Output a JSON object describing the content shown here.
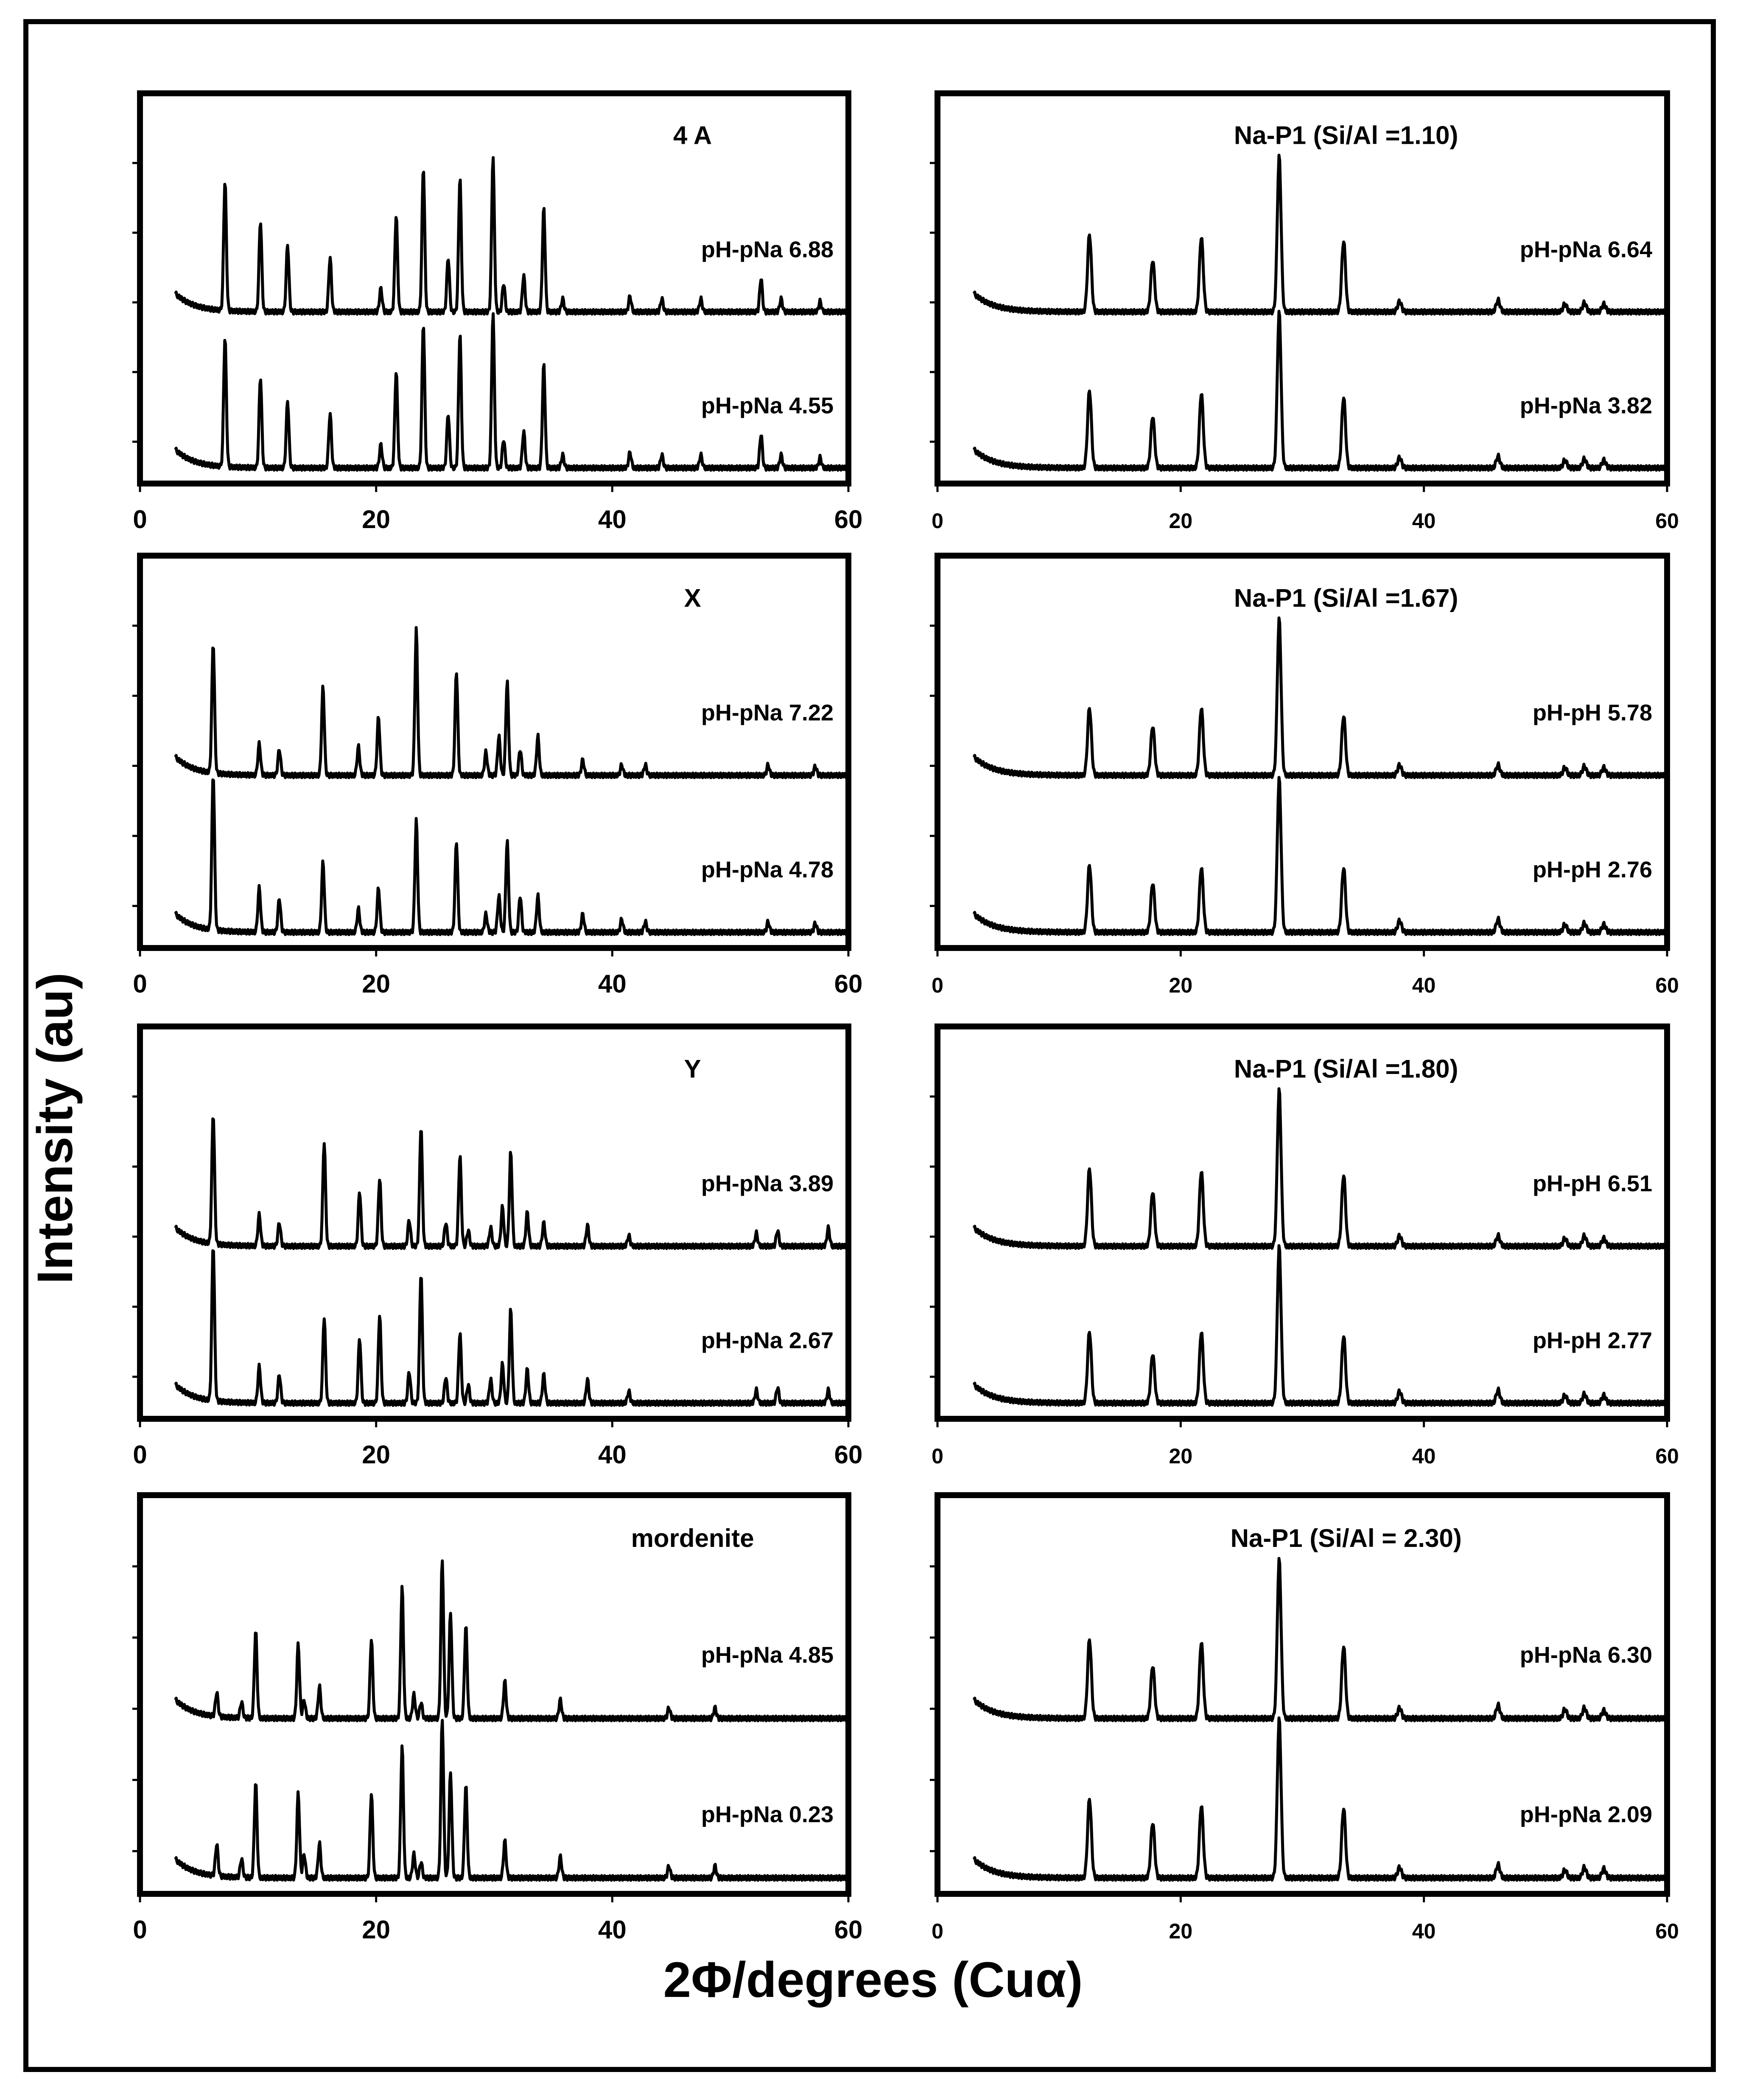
{
  "figure": {
    "ylabel": "Intensity (au)",
    "xlabel": "2Φ/degrees (Cuα)"
  },
  "chart_data": [
    {
      "type": "line",
      "panel": "left-1",
      "title": "4 A",
      "xlabel": "",
      "ylabel": "",
      "xlim": [
        0,
        60
      ],
      "xticks": [
        0,
        20,
        40,
        60
      ],
      "series": [
        {
          "name": "pH-pNa 6.88",
          "peaks": [
            [
              7.2,
              100
            ],
            [
              10.2,
              70
            ],
            [
              12.5,
              52
            ],
            [
              16.1,
              42
            ],
            [
              20.4,
              18
            ],
            [
              21.7,
              75
            ],
            [
              24.0,
              112
            ],
            [
              26.1,
              42
            ],
            [
              27.1,
              104
            ],
            [
              29.9,
              120
            ],
            [
              30.8,
              22
            ],
            [
              32.5,
              28
            ],
            [
              34.2,
              80
            ],
            [
              35.8,
              10
            ],
            [
              41.5,
              12
            ],
            [
              44.2,
              10
            ],
            [
              47.5,
              10
            ],
            [
              52.6,
              26
            ],
            [
              54.3,
              10
            ],
            [
              57.6,
              8
            ]
          ]
        },
        {
          "name": "pH-pNa 4.55",
          "peaks": [
            [
              7.2,
              100
            ],
            [
              10.2,
              70
            ],
            [
              12.5,
              52
            ],
            [
              16.1,
              42
            ],
            [
              20.4,
              18
            ],
            [
              21.7,
              75
            ],
            [
              24.0,
              112
            ],
            [
              26.1,
              42
            ],
            [
              27.1,
              104
            ],
            [
              29.9,
              120
            ],
            [
              30.8,
              22
            ],
            [
              32.5,
              28
            ],
            [
              34.2,
              80
            ],
            [
              35.8,
              10
            ],
            [
              41.5,
              12
            ],
            [
              44.2,
              10
            ],
            [
              47.5,
              10
            ],
            [
              52.6,
              26
            ],
            [
              54.3,
              10
            ],
            [
              57.6,
              8
            ]
          ]
        }
      ]
    },
    {
      "type": "line",
      "panel": "right-1",
      "title": "Na-P1  (Si/Al  =1.10)",
      "xlabel": "",
      "ylabel": "",
      "xlim": [
        0,
        60
      ],
      "xticks": [
        0,
        20,
        40,
        60
      ],
      "series": [
        {
          "name": "pH-pNa 6.64",
          "peaks": [
            [
              12.5,
              60
            ],
            [
              17.7,
              40
            ],
            [
              21.7,
              58
            ],
            [
              28.1,
              120
            ],
            [
              33.4,
              55
            ],
            [
              38.0,
              8
            ],
            [
              46.1,
              9
            ],
            [
              51.6,
              6
            ],
            [
              53.2,
              7
            ],
            [
              54.8,
              6
            ]
          ]
        },
        {
          "name": "pH-pNa 3.82",
          "peaks": [
            [
              12.5,
              60
            ],
            [
              17.7,
              40
            ],
            [
              21.7,
              58
            ],
            [
              28.1,
              120
            ],
            [
              33.4,
              55
            ],
            [
              38.0,
              8
            ],
            [
              46.1,
              9
            ],
            [
              51.6,
              6
            ],
            [
              53.2,
              7
            ],
            [
              54.8,
              6
            ]
          ]
        }
      ]
    },
    {
      "type": "line",
      "panel": "left-2",
      "title": "X",
      "xlabel": "",
      "ylabel": "",
      "xlim": [
        0,
        60
      ],
      "xticks": [
        0,
        20,
        40,
        60
      ],
      "series": [
        {
          "name": "pH-pNa 7.22",
          "peaks": [
            [
              6.2,
              100
            ],
            [
              10.1,
              24
            ],
            [
              11.8,
              20
            ],
            [
              15.5,
              68
            ],
            [
              18.5,
              22
            ],
            [
              20.2,
              45
            ],
            [
              23.4,
              112
            ],
            [
              26.8,
              80
            ],
            [
              29.3,
              18
            ],
            [
              30.4,
              30
            ],
            [
              31.1,
              72
            ],
            [
              32.2,
              20
            ],
            [
              33.7,
              30
            ],
            [
              37.5,
              12
            ],
            [
              40.8,
              8
            ],
            [
              42.8,
              8
            ],
            [
              53.2,
              8
            ],
            [
              57.2,
              7
            ]
          ]
        },
        {
          "name": "pH-pNa 4.78",
          "peaks": [
            [
              6.2,
              120
            ],
            [
              10.1,
              34
            ],
            [
              11.8,
              26
            ],
            [
              15.5,
              54
            ],
            [
              18.5,
              18
            ],
            [
              20.2,
              34
            ],
            [
              23.4,
              86
            ],
            [
              26.8,
              70
            ],
            [
              29.3,
              14
            ],
            [
              30.4,
              28
            ],
            [
              31.1,
              70
            ],
            [
              32.2,
              28
            ],
            [
              33.7,
              28
            ],
            [
              37.5,
              14
            ],
            [
              40.8,
              10
            ],
            [
              42.8,
              8
            ],
            [
              53.2,
              8
            ],
            [
              57.2,
              7
            ]
          ]
        }
      ]
    },
    {
      "type": "line",
      "panel": "right-2",
      "title": "Na-P1  (Si/Al  =1.67)",
      "xlabel": "",
      "ylabel": "",
      "xlim": [
        0,
        60
      ],
      "xticks": [
        0,
        20,
        40,
        60
      ],
      "series": [
        {
          "name": "pH-pH 5.78",
          "peaks": [
            [
              12.5,
              52
            ],
            [
              17.7,
              38
            ],
            [
              21.7,
              52
            ],
            [
              28.1,
              120
            ],
            [
              33.4,
              46
            ],
            [
              38.0,
              8
            ],
            [
              46.1,
              8
            ],
            [
              51.6,
              6
            ],
            [
              53.2,
              7
            ],
            [
              54.8,
              6
            ]
          ]
        },
        {
          "name": "pH-pH 2.76",
          "peaks": [
            [
              12.5,
              52
            ],
            [
              17.7,
              38
            ],
            [
              21.7,
              50
            ],
            [
              28.1,
              118
            ],
            [
              33.4,
              50
            ],
            [
              38.0,
              9
            ],
            [
              46.1,
              10
            ],
            [
              51.6,
              6
            ],
            [
              53.2,
              7
            ],
            [
              54.8,
              6
            ]
          ]
        }
      ]
    },
    {
      "type": "line",
      "panel": "left-3",
      "title": "Y",
      "xlabel": "",
      "ylabel": "",
      "xlim": [
        0,
        60
      ],
      "xticks": [
        0,
        20,
        40,
        60
      ],
      "series": [
        {
          "name": "pH-pNa 3.89",
          "peaks": [
            [
              6.2,
              100
            ],
            [
              10.1,
              24
            ],
            [
              11.8,
              18
            ],
            [
              15.6,
              80
            ],
            [
              18.6,
              42
            ],
            [
              20.3,
              52
            ],
            [
              22.8,
              20
            ],
            [
              23.8,
              92
            ],
            [
              25.9,
              18
            ],
            [
              27.1,
              70
            ],
            [
              27.8,
              12
            ],
            [
              29.7,
              14
            ],
            [
              30.7,
              30
            ],
            [
              31.4,
              72
            ],
            [
              32.8,
              26
            ],
            [
              34.2,
              18
            ],
            [
              37.9,
              16
            ],
            [
              41.4,
              8
            ],
            [
              52.2,
              10
            ],
            [
              54.0,
              12
            ],
            [
              58.3,
              14
            ]
          ]
        },
        {
          "name": "pH-pNa 2.67",
          "peaks": [
            [
              6.2,
              120
            ],
            [
              10.1,
              28
            ],
            [
              11.8,
              22
            ],
            [
              15.6,
              66
            ],
            [
              18.6,
              50
            ],
            [
              20.3,
              68
            ],
            [
              22.8,
              24
            ],
            [
              23.8,
              100
            ],
            [
              25.9,
              20
            ],
            [
              27.1,
              54
            ],
            [
              27.8,
              14
            ],
            [
              29.7,
              18
            ],
            [
              30.7,
              30
            ],
            [
              31.4,
              72
            ],
            [
              32.8,
              26
            ],
            [
              34.2,
              22
            ],
            [
              37.9,
              18
            ],
            [
              41.4,
              9
            ],
            [
              52.2,
              10
            ],
            [
              54.0,
              12
            ],
            [
              58.3,
              10
            ]
          ]
        }
      ]
    },
    {
      "type": "line",
      "panel": "right-3",
      "title": "Na-P1  (Si/Al  =1.80)",
      "xlabel": "",
      "ylabel": "",
      "xlim": [
        0,
        60
      ],
      "xticks": [
        0,
        20,
        40,
        60
      ],
      "series": [
        {
          "name": "pH-pH 6.51",
          "peaks": [
            [
              12.5,
              60
            ],
            [
              17.7,
              42
            ],
            [
              21.7,
              58
            ],
            [
              28.1,
              120
            ],
            [
              33.4,
              55
            ],
            [
              38.0,
              8
            ],
            [
              46.1,
              8
            ],
            [
              51.6,
              6
            ],
            [
              53.2,
              8
            ],
            [
              54.8,
              6
            ]
          ]
        },
        {
          "name": "pH-pH 2.77",
          "peaks": [
            [
              12.5,
              55
            ],
            [
              17.7,
              38
            ],
            [
              21.7,
              55
            ],
            [
              28.1,
              120
            ],
            [
              33.4,
              52
            ],
            [
              38.0,
              9
            ],
            [
              46.1,
              10
            ],
            [
              51.6,
              6
            ],
            [
              53.2,
              7
            ],
            [
              54.8,
              6
            ]
          ]
        }
      ]
    },
    {
      "type": "line",
      "panel": "left-4",
      "title": "mordenite",
      "xlabel": "",
      "ylabel": "",
      "xlim": [
        0,
        60
      ],
      "xticks": [
        0,
        20,
        40,
        60
      ],
      "series": [
        {
          "name": "pH-pNa  4.85",
          "peaks": [
            [
              6.5,
              18
            ],
            [
              8.6,
              12
            ],
            [
              9.8,
              66
            ],
            [
              13.4,
              56
            ],
            [
              13.9,
              14
            ],
            [
              15.2,
              24
            ],
            [
              19.6,
              60
            ],
            [
              22.2,
              100
            ],
            [
              23.2,
              18
            ],
            [
              23.8,
              12
            ],
            [
              25.6,
              120
            ],
            [
              26.3,
              80
            ],
            [
              27.6,
              70
            ],
            [
              30.9,
              28
            ],
            [
              35.6,
              14
            ],
            [
              44.8,
              8
            ],
            [
              48.7,
              8
            ]
          ]
        },
        {
          "name": "pH-pNa 0.23",
          "peaks": [
            [
              6.5,
              24
            ],
            [
              8.6,
              14
            ],
            [
              9.8,
              72
            ],
            [
              13.4,
              64
            ],
            [
              13.9,
              18
            ],
            [
              15.2,
              26
            ],
            [
              19.6,
              64
            ],
            [
              22.2,
              100
            ],
            [
              23.2,
              18
            ],
            [
              23.8,
              12
            ],
            [
              25.6,
              120
            ],
            [
              26.3,
              80
            ],
            [
              27.6,
              70
            ],
            [
              30.9,
              28
            ],
            [
              35.6,
              16
            ],
            [
              44.8,
              9
            ],
            [
              48.7,
              9
            ]
          ]
        }
      ]
    },
    {
      "type": "line",
      "panel": "right-4",
      "title": "Na-P1  (Si/Al  = 2.30)",
      "xlabel": "",
      "ylabel": "",
      "xlim": [
        0,
        60
      ],
      "xticks": [
        0,
        20,
        40,
        60
      ],
      "series": [
        {
          "name": "pH-pNa 6.30",
          "peaks": [
            [
              12.5,
              60
            ],
            [
              17.7,
              40
            ],
            [
              21.7,
              58
            ],
            [
              28.1,
              120
            ],
            [
              33.4,
              55
            ],
            [
              38.0,
              8
            ],
            [
              46.1,
              10
            ],
            [
              51.6,
              7
            ],
            [
              53.2,
              8
            ],
            [
              54.8,
              6
            ]
          ]
        },
        {
          "name": "pH-pNa 2.09",
          "peaks": [
            [
              12.5,
              60
            ],
            [
              17.7,
              42
            ],
            [
              21.7,
              55
            ],
            [
              28.1,
              120
            ],
            [
              33.4,
              53
            ],
            [
              38.0,
              8
            ],
            [
              46.1,
              10
            ],
            [
              51.6,
              6
            ],
            [
              53.2,
              8
            ],
            [
              54.8,
              7
            ]
          ]
        }
      ]
    }
  ]
}
